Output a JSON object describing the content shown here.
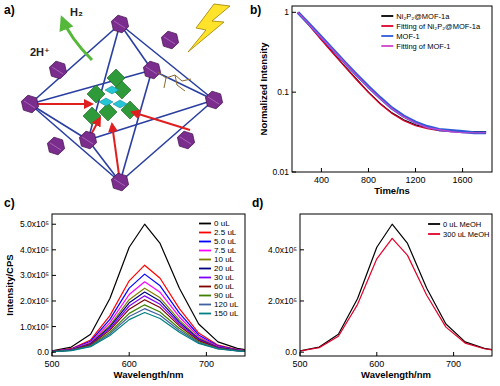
{
  "diagram": {
    "label": "a)",
    "product": "H₂",
    "reactant": "2H⁺"
  },
  "chart_data": [
    {
      "type": "line",
      "title": "b)",
      "x_label": "Time/ns",
      "y_label": "Normalized Intensity",
      "log": "y",
      "legend": "top-right",
      "x": [
        200,
        300,
        400,
        500,
        600,
        700,
        800,
        900,
        1000,
        1100,
        1200,
        1300,
        1400,
        1500,
        1600,
        1700,
        1800
      ],
      "xlim": [
        150,
        1850
      ],
      "xticks": [
        400,
        800,
        1200,
        1600
      ],
      "ylim": [
        0.01,
        1.2
      ],
      "yticks": [
        0.01,
        0.1,
        1
      ],
      "series": [
        {
          "name": "Ni₂P₂@MOF-1a",
          "color": "#000000",
          "values": [
            1.0,
            0.68,
            0.46,
            0.31,
            0.21,
            0.145,
            0.1,
            0.072,
            0.055,
            0.045,
            0.039,
            0.036,
            0.034,
            0.033,
            0.032,
            0.032,
            0.032
          ]
        },
        {
          "name": "Fitting of Ni₂P₂@MOF-1a",
          "color": "#e0002a",
          "values": [
            1.0,
            0.67,
            0.45,
            0.305,
            0.207,
            0.142,
            0.099,
            0.071,
            0.054,
            0.044,
            0.038,
            0.035,
            0.033,
            0.032,
            0.032,
            0.031,
            0.031
          ]
        },
        {
          "name": "MOF-1",
          "color": "#2e5bd8",
          "values": [
            1.0,
            0.7,
            0.49,
            0.34,
            0.235,
            0.165,
            0.117,
            0.085,
            0.063,
            0.05,
            0.042,
            0.037,
            0.034,
            0.033,
            0.032,
            0.031,
            0.031
          ]
        },
        {
          "name": "Fitting of MOF-1",
          "color": "#cc44cc",
          "values": [
            1.0,
            0.69,
            0.48,
            0.335,
            0.232,
            0.162,
            0.115,
            0.083,
            0.062,
            0.049,
            0.041,
            0.036,
            0.034,
            0.032,
            0.031,
            0.031,
            0.031
          ]
        }
      ]
    },
    {
      "type": "line",
      "title": "c)",
      "x_label": "Wavelength/nm",
      "y_label": "Intensity/CPS",
      "legend": "top-right",
      "x": [
        500,
        525,
        550,
        575,
        600,
        620,
        640,
        665,
        690,
        715,
        740,
        750
      ],
      "xlim": [
        500,
        750
      ],
      "xticks": [
        500,
        600,
        700
      ],
      "ylim": [
        -15000,
        540000
      ],
      "yticks": [
        {
          "value": 0,
          "label": "0.0"
        },
        {
          "value": 100000,
          "label": "1.0x10⁵"
        },
        {
          "value": 200000,
          "label": "2.0x10⁵"
        },
        {
          "value": 300000,
          "label": "3.0x10⁵"
        },
        {
          "value": 400000,
          "label": "4.0x10⁵"
        },
        {
          "value": 500000,
          "label": "5.0x10⁵"
        }
      ],
      "series": [
        {
          "name": "0 uL",
          "color": "#000000",
          "values": [
            5000,
            20000,
            70000,
            210000,
            410000,
            500000,
            425000,
            250000,
            110000,
            40000,
            15000,
            10000
          ]
        },
        {
          "name": "2.5 uL",
          "color": "#ff0000",
          "values": [
            3400,
            13600,
            47600,
            142800,
            278800,
            340000,
            289000,
            170000,
            74800,
            27200,
            10200,
            6800
          ]
        },
        {
          "name": "5.0 uL",
          "color": "#0000ff",
          "values": [
            3050,
            12200,
            42700,
            128100,
            250100,
            305000,
            259250,
            152500,
            67100,
            24400,
            9150,
            6100
          ]
        },
        {
          "name": "7.5 uL",
          "color": "#ff00ff",
          "values": [
            2750,
            11000,
            38500,
            115500,
            225500,
            275000,
            233750,
            137500,
            60500,
            22000,
            8250,
            5500
          ]
        },
        {
          "name": "10 uL",
          "color": "#808000",
          "values": [
            2500,
            10000,
            35000,
            105000,
            205000,
            250000,
            212500,
            125000,
            55000,
            20000,
            7500,
            5000
          ]
        },
        {
          "name": "20 uL",
          "color": "#000080",
          "values": [
            2350,
            9400,
            32900,
            98700,
            192700,
            235000,
            199750,
            117500,
            51700,
            18800,
            7050,
            4700
          ]
        },
        {
          "name": "30 uL",
          "color": "#8000ff",
          "values": [
            2200,
            8800,
            30800,
            92400,
            180400,
            220000,
            187000,
            110000,
            48400,
            17600,
            6600,
            4400
          ]
        },
        {
          "name": "60 uL",
          "color": "#800000",
          "values": [
            2050,
            8200,
            28700,
            86100,
            168100,
            205000,
            174250,
            102500,
            45100,
            16400,
            6150,
            4100
          ]
        },
        {
          "name": "90 uL",
          "color": "#408000",
          "values": [
            1850,
            7400,
            25900,
            77700,
            151700,
            185000,
            157250,
            92500,
            40700,
            14800,
            5550,
            3700
          ]
        },
        {
          "name": "120 uL",
          "color": "#4060a0",
          "values": [
            1700,
            6800,
            23800,
            71400,
            139400,
            170000,
            144500,
            85000,
            37400,
            13600,
            5100,
            3400
          ]
        },
        {
          "name": "150 uL",
          "color": "#008080",
          "values": [
            1550,
            6200,
            21700,
            65100,
            127100,
            155000,
            131750,
            77500,
            34100,
            12400,
            4650,
            3100
          ]
        }
      ]
    },
    {
      "type": "line",
      "title": "d)",
      "x_label": "Wavelength/nm",
      "legend": "top-right",
      "x": [
        500,
        525,
        550,
        575,
        600,
        620,
        640,
        665,
        690,
        715,
        740,
        750
      ],
      "xlim": [
        500,
        750
      ],
      "xticks": [
        500,
        600,
        700
      ],
      "ylim": [
        -15000,
        540000
      ],
      "yticks": [
        {
          "value": 0,
          "label": "0.0"
        },
        {
          "value": 200000,
          "label": "2.0x10⁵"
        },
        {
          "value": 400000,
          "label": "4.0x10⁵"
        }
      ],
      "series": [
        {
          "name": "0 uL MeOH",
          "color": "#000000",
          "values": [
            5000,
            20000,
            70000,
            210000,
            410000,
            500000,
            425000,
            250000,
            110000,
            40000,
            15000,
            10000
          ]
        },
        {
          "name": "300 uL MeOH",
          "color": "#e0002a",
          "values": [
            4450,
            17800,
            62300,
            186900,
            364900,
            445000,
            378250,
            222500,
            97900,
            35600,
            13350,
            8900
          ]
        }
      ]
    }
  ]
}
